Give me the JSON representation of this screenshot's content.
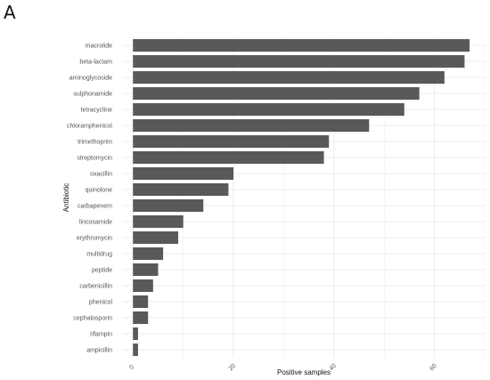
{
  "panel_label": "A",
  "chart_data": {
    "type": "bar",
    "orientation": "horizontal",
    "title": "",
    "xlabel": "Positive samples",
    "ylabel": "Antibiotic",
    "xlim": [
      -2,
      70
    ],
    "xticks": [
      0,
      20,
      40,
      60
    ],
    "xtick_labels": [
      "0",
      "20",
      "40",
      "60"
    ],
    "grid": true,
    "categories": [
      "macrolide",
      "beta-lactam",
      "aminoglycoside",
      "sulphonamide",
      "tetracycline",
      "chloramphenicol",
      "trimethoprim",
      "streptomycin",
      "oxacillin",
      "quinolone",
      "carbapenem",
      "lincosamide",
      "erythromycin",
      "multidrug",
      "peptide",
      "carbenicillin",
      "phenicol",
      "cephalosporin",
      "rifampin",
      "ampicillin"
    ],
    "values": [
      67,
      66,
      62,
      57,
      54,
      47,
      39,
      38,
      20,
      19,
      14,
      10,
      9,
      6,
      5,
      4,
      3,
      3,
      1,
      1
    ],
    "bar_color": "#595959",
    "grid_color": "#ebebeb"
  }
}
